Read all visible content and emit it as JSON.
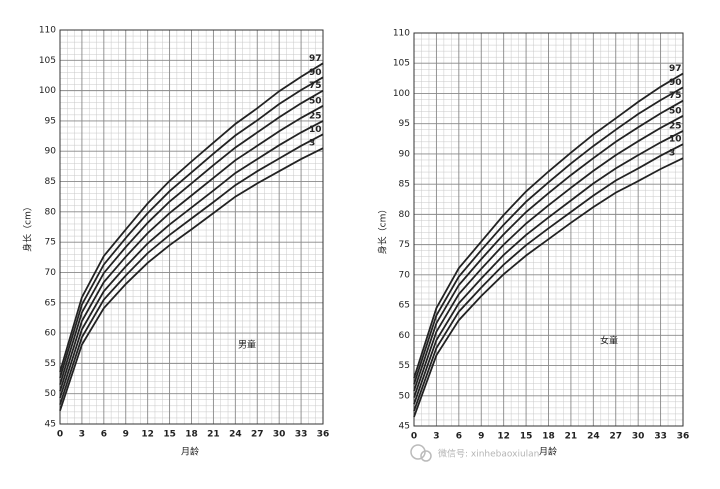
{
  "chart_data": [
    {
      "type": "line",
      "y_label": "身长（cm）",
      "x_label": "月龄",
      "annotation": "男童",
      "x": [
        0,
        3,
        6,
        9,
        12,
        15,
        18,
        21,
        24,
        27,
        30,
        33,
        36
      ],
      "xlim": [
        0,
        36
      ],
      "ylim": [
        45,
        110
      ],
      "xticks": [
        0,
        3,
        6,
        9,
        12,
        15,
        18,
        21,
        24,
        27,
        30,
        33,
        36
      ],
      "yticks": [
        45,
        50,
        55,
        60,
        65,
        70,
        75,
        80,
        85,
        90,
        95,
        100,
        105,
        110
      ],
      "grid": true,
      "series": [
        {
          "name": "97",
          "color": "#222222",
          "values": [
            53.6,
            65.9,
            72.7,
            77.1,
            81.4,
            85.1,
            88.3,
            91.4,
            94.5,
            97.1,
            99.9,
            102.3,
            104.5
          ]
        },
        {
          "name": "90",
          "color": "#222222",
          "values": [
            52.6,
            64.7,
            71.3,
            75.7,
            79.8,
            83.4,
            86.5,
            89.6,
            92.6,
            95.1,
            97.8,
            100.1,
            102.2
          ]
        },
        {
          "name": "75",
          "color": "#222222",
          "values": [
            51.5,
            63.4,
            69.9,
            74.2,
            78.2,
            81.7,
            84.7,
            87.7,
            90.6,
            93.1,
            95.6,
            97.9,
            100.0
          ]
        },
        {
          "name": "50",
          "color": "#222222",
          "values": [
            50.4,
            62.0,
            68.4,
            72.6,
            76.5,
            79.8,
            82.7,
            85.6,
            88.5,
            90.9,
            93.3,
            95.5,
            97.5
          ]
        },
        {
          "name": "25",
          "color": "#222222",
          "values": [
            49.3,
            60.6,
            66.9,
            71.0,
            74.8,
            77.9,
            80.7,
            83.5,
            86.4,
            88.7,
            91.0,
            93.1,
            95.0
          ]
        },
        {
          "name": "10",
          "color": "#222222",
          "values": [
            48.2,
            59.3,
            65.5,
            69.5,
            73.2,
            76.2,
            78.9,
            81.6,
            84.4,
            86.7,
            88.8,
            90.9,
            92.8
          ]
        },
        {
          "name": "3",
          "color": "#222222",
          "values": [
            47.2,
            58.1,
            64.1,
            68.1,
            71.6,
            74.5,
            77.1,
            79.8,
            82.5,
            84.7,
            86.7,
            88.7,
            90.5
          ]
        }
      ]
    },
    {
      "type": "line",
      "y_label": "身长（cm）",
      "x_label": "月龄",
      "annotation": "女童",
      "x": [
        0,
        3,
        6,
        9,
        12,
        15,
        18,
        21,
        24,
        27,
        30,
        33,
        36
      ],
      "xlim": [
        0,
        36
      ],
      "ylim": [
        45,
        110
      ],
      "xticks": [
        0,
        3,
        6,
        9,
        12,
        15,
        18,
        21,
        24,
        27,
        30,
        33,
        36
      ],
      "yticks": [
        45,
        50,
        55,
        60,
        65,
        70,
        75,
        80,
        85,
        90,
        95,
        100,
        105,
        110
      ],
      "grid": true,
      "series": [
        {
          "name": "97",
          "color": "#222222",
          "values": [
            52.9,
            64.5,
            71.1,
            75.5,
            79.9,
            83.8,
            87.1,
            90.2,
            93.2,
            95.9,
            98.6,
            101.1,
            103.3
          ]
        },
        {
          "name": "90",
          "color": "#222222",
          "values": [
            51.9,
            63.3,
            69.7,
            74.1,
            78.3,
            82.1,
            85.3,
            88.4,
            91.3,
            94.0,
            96.6,
            98.9,
            101.0
          ]
        },
        {
          "name": "75",
          "color": "#222222",
          "values": [
            50.8,
            62.0,
            68.3,
            72.6,
            76.7,
            80.4,
            83.5,
            86.5,
            89.3,
            92.0,
            94.4,
            96.7,
            98.8
          ]
        },
        {
          "name": "50",
          "color": "#222222",
          "values": [
            49.7,
            60.6,
            66.8,
            71.0,
            75.0,
            78.5,
            81.5,
            84.4,
            87.2,
            89.8,
            92.1,
            94.3,
            96.3
          ]
        },
        {
          "name": "25",
          "color": "#222222",
          "values": [
            48.6,
            59.2,
            65.3,
            69.4,
            73.3,
            76.6,
            79.5,
            82.3,
            85.1,
            87.6,
            89.8,
            91.9,
            93.8
          ]
        },
        {
          "name": "10",
          "color": "#222222",
          "values": [
            47.5,
            57.9,
            63.9,
            67.9,
            71.7,
            74.9,
            77.7,
            80.4,
            83.1,
            85.6,
            87.6,
            89.7,
            91.6
          ]
        },
        {
          "name": "3",
          "color": "#222222",
          "values": [
            46.5,
            56.7,
            62.5,
            66.5,
            70.1,
            73.2,
            75.9,
            78.6,
            81.2,
            83.6,
            85.5,
            87.5,
            89.3
          ]
        }
      ]
    }
  ],
  "watermark": "微信号: xinhebaoxiulan"
}
